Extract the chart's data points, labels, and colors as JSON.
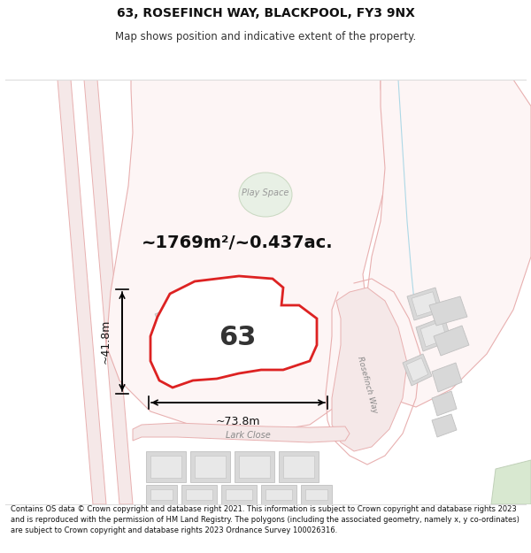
{
  "title": "63, ROSEFINCH WAY, BLACKPOOL, FY3 9NX",
  "subtitle": "Map shows position and indicative extent of the property.",
  "area_text": "~1769m²/~0.437ac.",
  "plot_number": "63",
  "dim_width": "~73.8m",
  "dim_height": "~41.8m",
  "footer": "Contains OS data © Crown copyright and database right 2021. This information is subject to Crown copyright and database rights 2023 and is reproduced with the permission of HM Land Registry. The polygons (including the associated geometry, namely x, y co-ordinates) are subject to Crown copyright and database rights 2023 Ordnance Survey 100026316.",
  "bg_color": "#ffffff",
  "plot_fill": "#ffffff",
  "plot_outline": "#dd2222",
  "outline_color": "#e8b0b0",
  "gray_fill": "#d8d8d8",
  "gray_outline": "#c0c0c0",
  "green_fill": "#d8e8d0",
  "green_outline": "#c0d0b8",
  "blue_line": "#add8e6",
  "playspace_label": "Play Space",
  "lark_close_label": "Lark Close",
  "rosefinch_way_label": "Rosefinch Way"
}
